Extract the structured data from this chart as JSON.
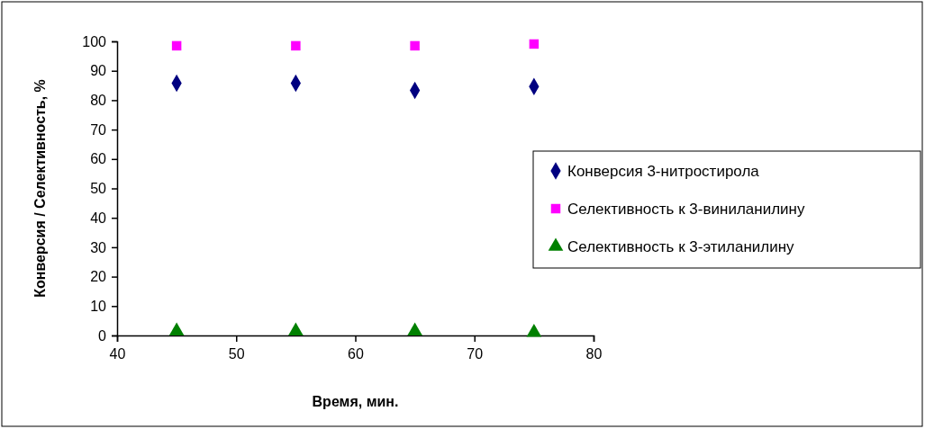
{
  "chart_data": {
    "type": "scatter",
    "xlabel": "Время, мин.",
    "ylabel": "Конверсия / Селективность, %",
    "xlim": [
      40,
      80
    ],
    "xticks": [
      40,
      50,
      60,
      70,
      80
    ],
    "ylim": [
      0,
      100
    ],
    "yticks": [
      0,
      10,
      20,
      30,
      40,
      50,
      60,
      70,
      80,
      90,
      100
    ],
    "grid": false,
    "legend": "right",
    "series": [
      {
        "name": "Конверсия 3-нитростирола",
        "color": "#000080",
        "marker": "diamond",
        "x": [
          45,
          55,
          65,
          75
        ],
        "values": [
          85.8,
          85.8,
          83.3,
          84.6
        ]
      },
      {
        "name": "Селективность к 3-виниланилину",
        "color": "#ff00ff",
        "marker": "square",
        "x": [
          45,
          55,
          65,
          75
        ],
        "values": [
          98.5,
          98.5,
          98.5,
          99.1
        ]
      },
      {
        "name": "Селективность к 3-этиланилину",
        "color": "#008000",
        "marker": "triangle",
        "x": [
          45,
          55,
          65,
          75
        ],
        "values": [
          1.5,
          1.5,
          1.5,
          1.0
        ]
      }
    ]
  }
}
